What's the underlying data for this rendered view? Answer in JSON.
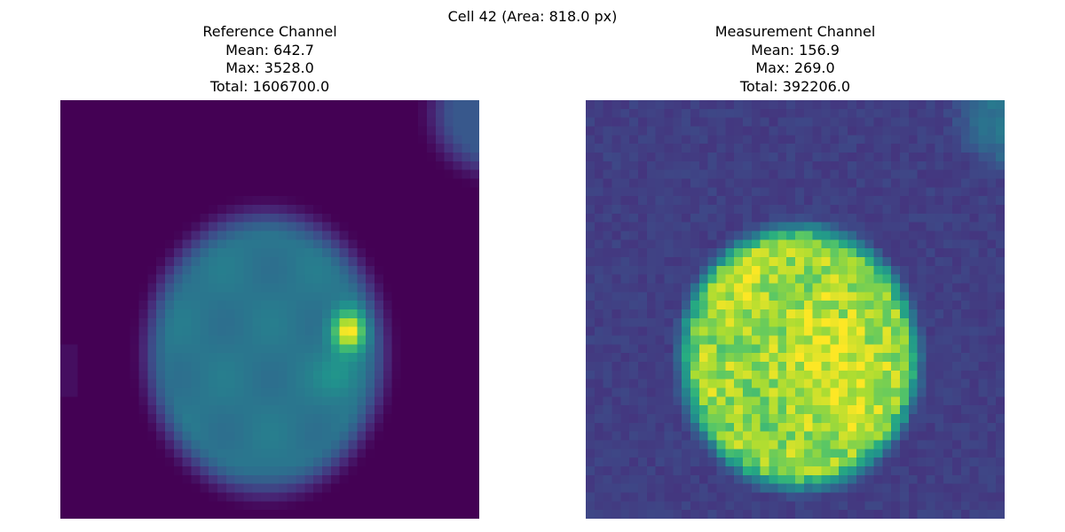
{
  "figure": {
    "suptitle": "Cell 42 (Area: 818.0 px)"
  },
  "panels": [
    {
      "title": "Reference Channel",
      "mean": "Mean: 642.7",
      "max": "Max: 3528.0",
      "total": "Total: 1606700.0",
      "colormap": "viridis",
      "image_description": "blurred cell nucleus with a bright spot on the right side"
    },
    {
      "title": "Measurement Channel",
      "mean": "Mean: 156.9",
      "max": "Max: 269.0",
      "total": "Total: 392206.0",
      "colormap": "viridis",
      "image_description": "noisy pixelated cell with bright yellow-green interior"
    }
  ],
  "colors": {
    "viridis_low": "#440154",
    "viridis_mid": "#21918c",
    "viridis_high": "#fde725"
  }
}
